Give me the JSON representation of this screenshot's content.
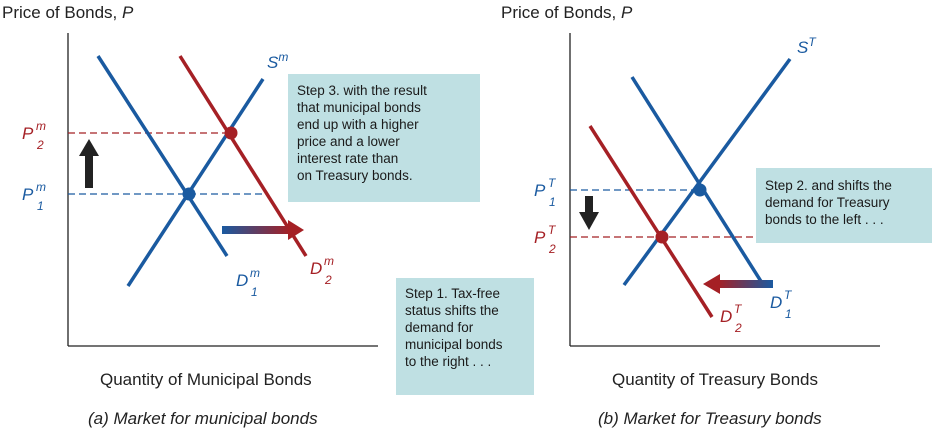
{
  "colors": {
    "blue": "#1a5aa0",
    "red": "#a52025",
    "axis": "#222222",
    "note_bg": "#bfe0e3",
    "arrow": "#222222"
  },
  "panel_a": {
    "y_axis_title": {
      "base": "Price of Bonds, ",
      "var": "P"
    },
    "x_axis_title": "Quantity of Municipal Bonds",
    "caption": "(a) Market for municipal bonds",
    "supply_label": {
      "base": "S",
      "sup": "m"
    },
    "demand1_label": {
      "base": "D",
      "sup": "m",
      "sub": "1"
    },
    "demand2_label": {
      "base": "D",
      "sup": "m",
      "sub": "2"
    },
    "p1_label": {
      "base": "P",
      "sup": "m",
      "sub": "1"
    },
    "p2_label": {
      "base": "P",
      "sup": "m",
      "sub": "2"
    }
  },
  "panel_b": {
    "y_axis_title": {
      "base": "Price of Bonds, ",
      "var": "P"
    },
    "x_axis_title": "Quantity of Treasury Bonds",
    "caption": "(b) Market for Treasury bonds",
    "supply_label": {
      "base": "S",
      "sup": "T"
    },
    "demand1_label": {
      "base": "D",
      "sup": "T",
      "sub": "1"
    },
    "demand2_label": {
      "base": "D",
      "sup": "T",
      "sub": "2"
    },
    "p1_label": {
      "base": "P",
      "sup": "T",
      "sub": "1"
    },
    "p2_label": {
      "base": "P",
      "sup": "T",
      "sub": "2"
    }
  },
  "notes": {
    "step1": [
      "Step 1. Tax-free",
      "status shifts the",
      "demand for",
      "municipal bonds",
      "to the right . . ."
    ],
    "step2": [
      "Step 2. and shifts the",
      "demand for Treasury",
      "bonds to the left . . ."
    ],
    "step3": [
      "Step 3. with the result",
      "that municipal bonds",
      "end up with a higher",
      "price and a lower",
      "interest rate than",
      "on Treasury bonds."
    ]
  }
}
